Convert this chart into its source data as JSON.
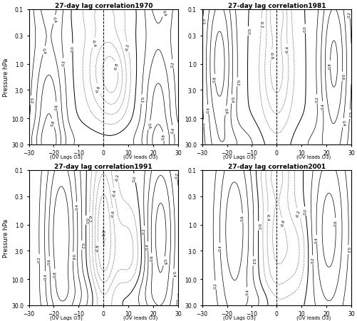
{
  "titles": [
    "27-day lag correlation1970",
    "27-day lag correlation1981",
    "27-day lag correlation1991",
    "27-day lag correlation2001"
  ],
  "xlabel_left": "(UV Lags O3)",
  "xlabel_right": "(UV leads O3)",
  "ylabel": "Pressure hPa",
  "xlim": [
    -30,
    30
  ],
  "pressure_levels": [
    0.1,
    0.3,
    1.0,
    3.0,
    10.0,
    30.0
  ],
  "contour_levels": [
    -1.0,
    -0.8,
    -0.6,
    -0.4,
    -0.2,
    0.0,
    0.2,
    0.4,
    0.6,
    0.8,
    1.0
  ],
  "figsize": [
    5.02,
    4.52
  ],
  "dpi": 100
}
